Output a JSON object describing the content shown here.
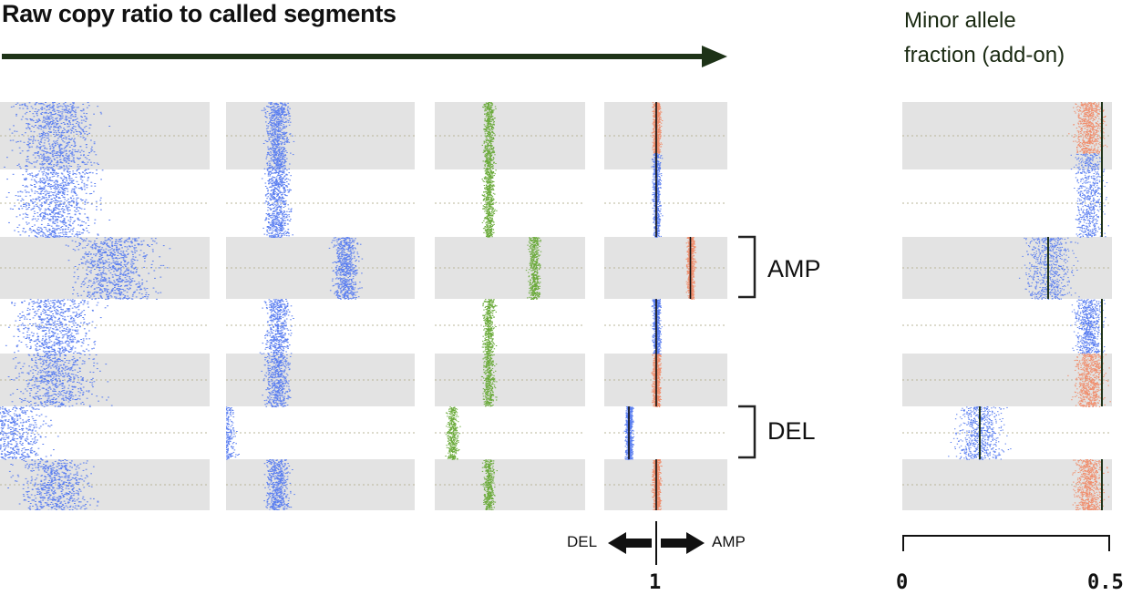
{
  "header": {
    "title": "Raw copy ratio to called segments",
    "maf_title_line1": "Minor allele",
    "maf_title_line2": "fraction (add-on)"
  },
  "annotations": {
    "amp": "AMP",
    "del": "DEL"
  },
  "copy_ratio_axis": {
    "left_label": "DEL",
    "right_label": "AMP",
    "tick": "1"
  },
  "maf_axis": {
    "min": "0",
    "max": "0.5"
  },
  "colors": {
    "raw": "#5a7ef0",
    "denoised": "#6aaa3a",
    "amp_segment": "#f08c6a",
    "band": "#e3e3e3",
    "arrow": "#1e3318"
  }
}
